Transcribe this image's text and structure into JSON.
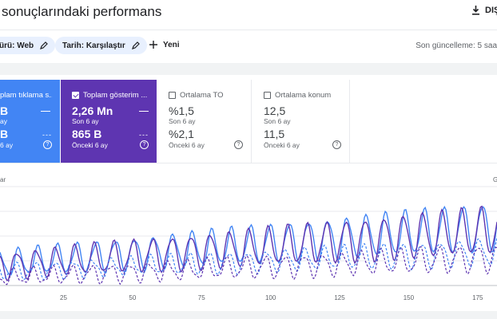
{
  "header": {
    "title": "sonuçlarındaki performans",
    "export_label": "DIŞ"
  },
  "filters": {
    "type_chip": "ürü: Web",
    "date_chip": "Tarih: Karşılaştır",
    "new_label": "Yeni",
    "updated": "Son güncelleme: 5 saa"
  },
  "cards": [
    {
      "label": "plam tıklama s...",
      "value_current": "B",
      "period_current": "ay",
      "value_previous": "B",
      "period_previous": "6 ay",
      "checked": true
    },
    {
      "label": "Toplam gösterim ...",
      "value_current": "2,26 Mn",
      "period_current": "Son 6 ay",
      "value_previous": "865 B",
      "period_previous": "Önceki 6 ay",
      "checked": true
    },
    {
      "label": "Ortalama TO",
      "value_current": "%1,5",
      "period_current": "Son 6 ay",
      "value_previous": "%2,1",
      "period_previous": "Önceki 6 ay",
      "checked": false
    },
    {
      "label": "Ortalama konum",
      "value_current": "12,5",
      "period_current": "Son 6 ay",
      "value_previous": "11,5",
      "period_previous": "Önceki 6 ay",
      "checked": false
    }
  ],
  "colors": {
    "clicks": "#4285f4",
    "impressions": "#5e35b1",
    "chip_bg": "#e8f0fe",
    "grid": "#e8eaed"
  },
  "chart_data": {
    "type": "line",
    "left_axis_label": "ar",
    "right_axis_label": "G",
    "x_ticks": [
      25,
      50,
      75,
      100,
      125,
      150,
      175
    ],
    "xlim": [
      2,
      182
    ],
    "grid": "horizontal",
    "series": [
      {
        "name": "Toplam tıklama",
        "style": "solid",
        "color": "#4285f4",
        "base": [
          22,
          60
        ]
      },
      {
        "name": "Toplam gösterim",
        "style": "solid",
        "color": "#5e35b1",
        "base": [
          20,
          56
        ]
      },
      {
        "name": "Toplam tıklama (önceki)",
        "style": "dashed",
        "color": "#4285f4",
        "base": [
          14,
          34
        ]
      },
      {
        "name": "Toplam gösterim (önceki)",
        "style": "dashed",
        "color": "#5e35b1",
        "base": [
          8,
          28
        ]
      }
    ]
  }
}
